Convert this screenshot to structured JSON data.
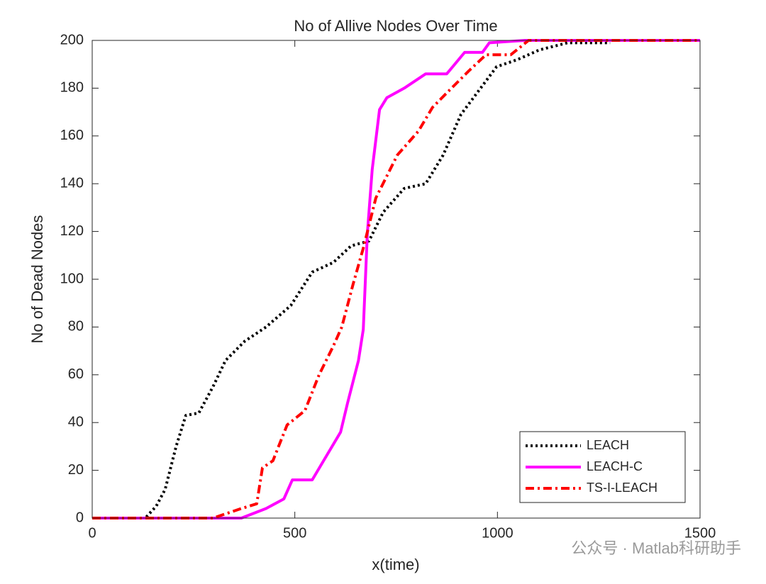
{
  "chart_data": {
    "type": "line",
    "title": "No of Allive Nodes Over Time",
    "xlabel": "x(time)",
    "ylabel": "No of Dead Nodes",
    "xlim": [
      0,
      1500
    ],
    "xticks": [
      0,
      500,
      1000,
      1500
    ],
    "ylim": [
      0,
      200
    ],
    "yticks": [
      0,
      20,
      40,
      60,
      80,
      100,
      120,
      140,
      160,
      180,
      200
    ],
    "legend": "bottom-right",
    "series": [
      {
        "name": "LEACH",
        "color": "#000000",
        "dash": "dotted",
        "x": [
          0,
          131,
          158,
          180,
          207,
          231,
          263,
          298,
          329,
          376,
          429,
          490,
          543,
          595,
          639,
          683,
          718,
          770,
          823,
          866,
          910,
          963,
          998,
          1050,
          1103,
          1173,
          1278
        ],
        "values": [
          0,
          0,
          5,
          12,
          30,
          43,
          44,
          55,
          66,
          74,
          80,
          89,
          103,
          107,
          114,
          116,
          128,
          138,
          140,
          152,
          169,
          181,
          189,
          192,
          196,
          199,
          199
        ]
      },
      {
        "name": "LEACH-C",
        "color": "#ff00ff",
        "dash": "solid",
        "x": [
          0,
          368,
          429,
          473,
          494,
          543,
          578,
          613,
          630,
          657,
          669,
          679,
          691,
          709,
          727,
          770,
          823,
          875,
          919,
          963,
          980,
          1068,
          1500
        ],
        "values": [
          0,
          0,
          4,
          8,
          16,
          16,
          26,
          36,
          48,
          66,
          79,
          119,
          146,
          171,
          176,
          180,
          186,
          186,
          195,
          195,
          199,
          200,
          200
        ]
      },
      {
        "name": "TS-I-LEACH",
        "color": "#ff0000",
        "dash": "dashdot",
        "x": [
          0,
          298,
          368,
          406,
          420,
          446,
          481,
          525,
          560,
          595,
          616,
          644,
          669,
          700,
          753,
          805,
          840,
          875,
          928,
          972,
          1033,
          1077,
          1500
        ],
        "values": [
          0,
          0,
          4,
          6,
          21,
          24,
          39,
          45,
          60,
          72,
          80,
          98,
          113,
          134,
          152,
          162,
          172,
          178,
          187,
          194,
          194,
          200,
          200
        ]
      }
    ]
  },
  "watermark": "公众号 · Matlab科研助手"
}
